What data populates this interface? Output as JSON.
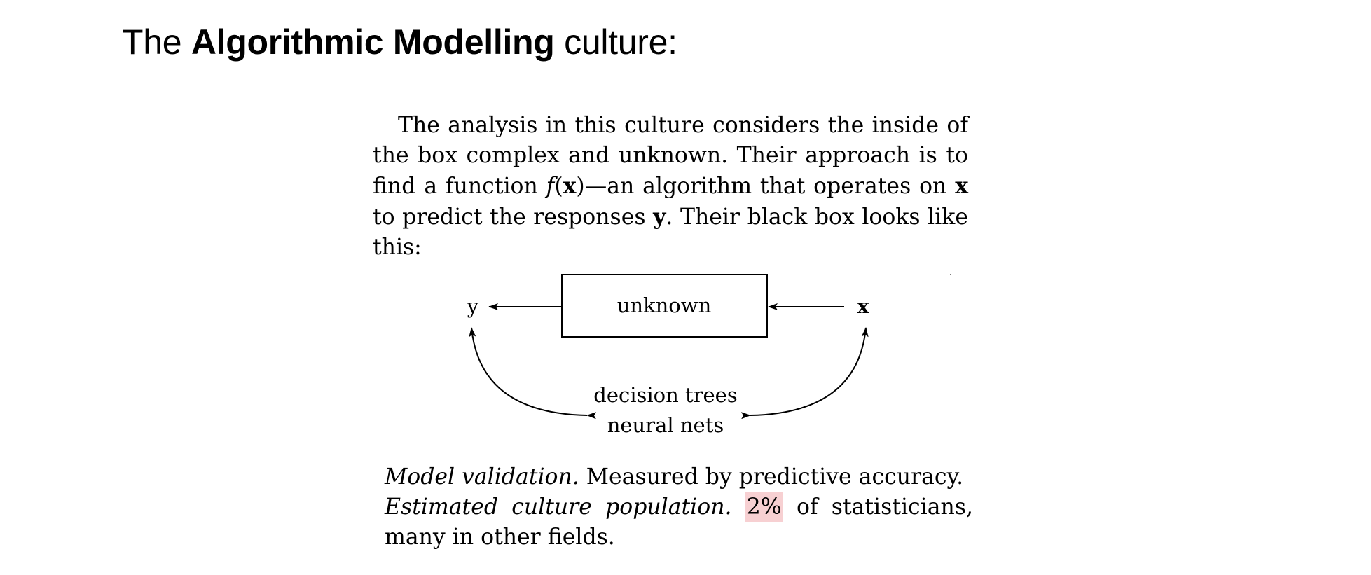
{
  "slide": {
    "title_prefix": "The",
    "title_bold": "Algorithmic Modelling",
    "title_suffix": "culture:"
  },
  "excerpt": {
    "p1": "The analysis in this culture considers the inside of the box complex and unknown. Their approach is to find a function",
    "f": "f",
    "paren_open": "(",
    "x_bold": "x",
    "p1_after": ")—an algorithm that operates on",
    "x_bold_2": "x",
    "p1_mid": "to predict the responses",
    "y_bold": "y",
    "p1_end": ". Their black box looks like this:"
  },
  "diagram": {
    "box_label": "unknown",
    "left_label": "y",
    "right_label": "x",
    "method_1": "decision trees",
    "method_2": "neural nets"
  },
  "footer": {
    "label_1": "Model validation.",
    "text_1": "Measured by predictive accuracy.",
    "label_2": "Estimated culture population.",
    "highlight": "2%",
    "text_2": "of statisticians, many in other fields."
  },
  "colors": {
    "highlight": "#f7d0d2"
  }
}
